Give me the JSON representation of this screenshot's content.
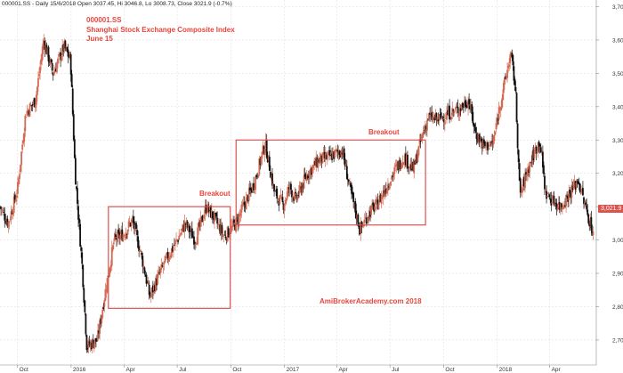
{
  "header": {
    "info": "000001.SS - Daily 15/6/2018 Open 3037.45, Hi 3046.8, Lo 3008.73, Close 3021.9 (-0.7%)"
  },
  "annotations": {
    "symbol": "000001.SS",
    "name": "Shanghai Stock Exchange Composite Index",
    "date": "June 15",
    "breakout_1": "Breakout",
    "breakout_2": "Breakout",
    "watermark": "AmiBrokerAcademy.com  2018"
  },
  "price_tag": "3,021.9",
  "colors": {
    "accent": "#e8453c",
    "up": "#d36b54",
    "down": "#111111",
    "box": "#d9534f",
    "grid": "#d8d8d8"
  },
  "chart_data": {
    "type": "candlestick",
    "title": "",
    "xlabel": "",
    "ylabel": "",
    "ylim": [
      2625,
      3720
    ],
    "y_ticks": [
      2700,
      2800,
      2900,
      3000,
      3100,
      3200,
      3300,
      3400,
      3500,
      3600,
      3700
    ],
    "y_tick_labels": [
      "2,700",
      "2,800",
      "2,900",
      "3,000",
      "3,100",
      "3,200",
      "3,300",
      "3,400",
      "3,500",
      "3,600",
      "3,700"
    ],
    "x_range": [
      "2015-09-01",
      "2018-06-20"
    ],
    "x_ticks": [
      {
        "date": "2015-10-01",
        "label": "Oct"
      },
      {
        "date": "2016-01-01",
        "label": "2016"
      },
      {
        "date": "2016-04-01",
        "label": "Apr"
      },
      {
        "date": "2016-07-01",
        "label": "Jul"
      },
      {
        "date": "2016-10-01",
        "label": "Oct"
      },
      {
        "date": "2017-01-01",
        "label": "2017"
      },
      {
        "date": "2017-04-01",
        "label": "Apr"
      },
      {
        "date": "2017-07-01",
        "label": "Jul"
      },
      {
        "date": "2017-10-01",
        "label": "Oct"
      },
      {
        "date": "2018-01-01",
        "label": "2018"
      },
      {
        "date": "2018-04-01",
        "label": "Apr"
      }
    ],
    "approx_closes": [
      [
        "2015-09-01",
        3100
      ],
      [
        "2015-09-15",
        3050
      ],
      [
        "2015-10-01",
        3150
      ],
      [
        "2015-10-15",
        3380
      ],
      [
        "2015-11-01",
        3420
      ],
      [
        "2015-11-15",
        3600
      ],
      [
        "2015-12-01",
        3500
      ],
      [
        "2015-12-20",
        3580
      ],
      [
        "2015-12-31",
        3540
      ],
      [
        "2016-01-08",
        3200
      ],
      [
        "2016-01-20",
        2920
      ],
      [
        "2016-01-28",
        2680
      ],
      [
        "2016-02-15",
        2700
      ],
      [
        "2016-03-01",
        2860
      ],
      [
        "2016-03-15",
        3000
      ],
      [
        "2016-04-01",
        3020
      ],
      [
        "2016-04-15",
        3060
      ],
      [
        "2016-05-01",
        2950
      ],
      [
        "2016-05-15",
        2830
      ],
      [
        "2016-06-01",
        2900
      ],
      [
        "2016-06-15",
        2950
      ],
      [
        "2016-07-01",
        3000
      ],
      [
        "2016-07-15",
        3050
      ],
      [
        "2016-08-01",
        3000
      ],
      [
        "2016-08-20",
        3100
      ],
      [
        "2016-09-01",
        3070
      ],
      [
        "2016-09-20",
        3010
      ],
      [
        "2016-10-10",
        3050
      ],
      [
        "2016-10-25",
        3110
      ],
      [
        "2016-11-10",
        3170
      ],
      [
        "2016-11-29",
        3290
      ],
      [
        "2016-12-15",
        3140
      ],
      [
        "2016-12-30",
        3105
      ],
      [
        "2017-01-10",
        3160
      ],
      [
        "2017-01-20",
        3120
      ],
      [
        "2017-02-10",
        3200
      ],
      [
        "2017-03-01",
        3240
      ],
      [
        "2017-03-20",
        3250
      ],
      [
        "2017-04-10",
        3270
      ],
      [
        "2017-04-25",
        3140
      ],
      [
        "2017-05-11",
        3030
      ],
      [
        "2017-05-25",
        3080
      ],
      [
        "2017-06-10",
        3110
      ],
      [
        "2017-06-25",
        3160
      ],
      [
        "2017-07-10",
        3210
      ],
      [
        "2017-07-25",
        3250
      ],
      [
        "2017-08-10",
        3210
      ],
      [
        "2017-08-25",
        3310
      ],
      [
        "2017-09-05",
        3370
      ],
      [
        "2017-09-20",
        3360
      ],
      [
        "2017-10-10",
        3380
      ],
      [
        "2017-10-25",
        3390
      ],
      [
        "2017-11-13",
        3420
      ],
      [
        "2017-11-25",
        3320
      ],
      [
        "2017-12-10",
        3280
      ],
      [
        "2017-12-25",
        3290
      ],
      [
        "2018-01-05",
        3400
      ],
      [
        "2018-01-15",
        3480
      ],
      [
        "2018-01-24",
        3560
      ],
      [
        "2018-02-01",
        3460
      ],
      [
        "2018-02-09",
        3130
      ],
      [
        "2018-02-20",
        3200
      ],
      [
        "2018-03-05",
        3260
      ],
      [
        "2018-03-15",
        3300
      ],
      [
        "2018-03-25",
        3140
      ],
      [
        "2018-04-05",
        3120
      ],
      [
        "2018-04-20",
        3100
      ],
      [
        "2018-05-05",
        3140
      ],
      [
        "2018-05-20",
        3180
      ],
      [
        "2018-06-01",
        3100
      ],
      [
        "2018-06-15",
        3021.9
      ]
    ],
    "boxes": [
      {
        "start": "2016-03-05",
        "end": "2016-09-30",
        "low": 2795,
        "high": 3100
      },
      {
        "start": "2016-10-10",
        "end": "2017-08-31",
        "low": 3045,
        "high": 3300
      }
    ]
  }
}
